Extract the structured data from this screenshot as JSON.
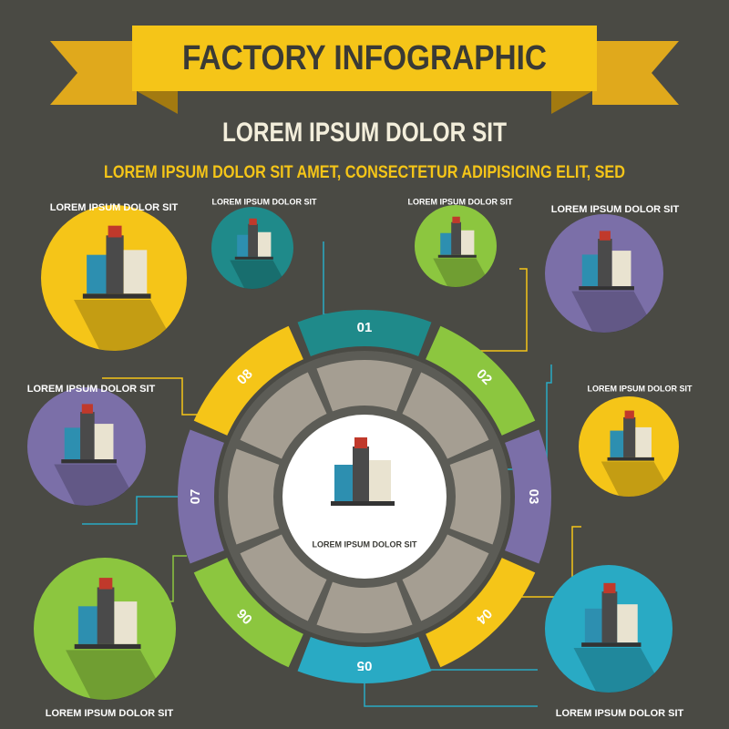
{
  "header": {
    "title": "FACTORY  INFOGRAPHIC",
    "subtitle": "LOREM IPSUM DOLOR SIT",
    "tagline": "LOREM IPSUM DOLOR SIT AMET, CONSECTETUR  ADIPISICING ELIT, SED"
  },
  "ring": {
    "segments": [
      "01",
      "02",
      "03",
      "04",
      "05",
      "06",
      "07",
      "08"
    ]
  },
  "center": {
    "label": "LOREM IPSUM DOLOR SIT"
  },
  "items": [
    {
      "label": "LOREM IPSUM DOLOR SIT"
    },
    {
      "label": "LOREM IPSUM DOLOR SIT"
    },
    {
      "label": "LOREM IPSUM DOLOR SIT"
    },
    {
      "label": "LOREM IPSUM DOLOR SIT"
    },
    {
      "label": "LOREM IPSUM DOLOR SIT"
    },
    {
      "label": "LOREM IPSUM DOLOR SIT"
    },
    {
      "label": "LOREM IPSUM DOLOR SIT"
    },
    {
      "label": "LOREM IPSUM DOLOR SIT"
    }
  ]
}
